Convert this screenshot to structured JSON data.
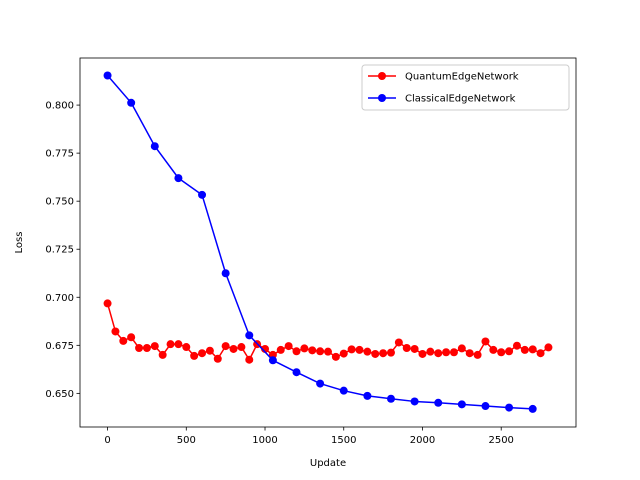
{
  "chart_data": {
    "type": "line",
    "title": "",
    "xlabel": "Update",
    "ylabel": "Loss",
    "xlim": [
      -175,
      2975
    ],
    "ylim": [
      0.6325,
      0.8245
    ],
    "xticks": [
      0,
      500,
      1000,
      1500,
      2000,
      2500
    ],
    "yticks": [
      0.65,
      0.675,
      0.7,
      0.725,
      0.75,
      0.775,
      0.8
    ],
    "ytick_labels": [
      "0.650",
      "0.675",
      "0.700",
      "0.725",
      "0.750",
      "0.775",
      "0.800"
    ],
    "grid": false,
    "legend_position": "upper right",
    "series": [
      {
        "name": "QuantumEdgeNetwork",
        "color": "#ff0000",
        "marker": "circle",
        "x": [
          0,
          50,
          100,
          150,
          200,
          250,
          300,
          350,
          400,
          450,
          500,
          550,
          600,
          650,
          700,
          750,
          800,
          850,
          900,
          950,
          1000,
          1050,
          1100,
          1150,
          1200,
          1250,
          1300,
          1350,
          1400,
          1450,
          1500,
          1550,
          1600,
          1650,
          1700,
          1750,
          1800,
          1850,
          1900,
          1950,
          2000,
          2050,
          2100,
          2150,
          2200,
          2250,
          2300,
          2350,
          2400,
          2450,
          2500,
          2550,
          2600,
          2650,
          2700,
          2750,
          2800
        ],
        "y": [
          0.6968,
          0.6822,
          0.6773,
          0.6792,
          0.6736,
          0.6736,
          0.6746,
          0.67,
          0.6756,
          0.6756,
          0.6741,
          0.6695,
          0.6709,
          0.6722,
          0.668,
          0.6746,
          0.6731,
          0.6741,
          0.6675,
          0.6756,
          0.6731,
          0.67,
          0.6726,
          0.6746,
          0.6719,
          0.6734,
          0.6724,
          0.6719,
          0.6717,
          0.669,
          0.6707,
          0.6729,
          0.6726,
          0.6717,
          0.6705,
          0.6709,
          0.6712,
          0.6765,
          0.6736,
          0.6731,
          0.6705,
          0.6717,
          0.6709,
          0.6714,
          0.6714,
          0.6734,
          0.6709,
          0.67,
          0.677,
          0.6726,
          0.6714,
          0.6719,
          0.6748,
          0.6726,
          0.6729,
          0.6709,
          0.6739
        ]
      },
      {
        "name": "ClassicalEdgeNetwork",
        "color": "#0000ff",
        "marker": "circle",
        "x": [
          0,
          150,
          300,
          450,
          600,
          750,
          900,
          1050,
          1200,
          1350,
          1500,
          1650,
          1800,
          1950,
          2100,
          2250,
          2400,
          2550,
          2700
        ],
        "y": [
          0.8154,
          0.8012,
          0.7786,
          0.762,
          0.7533,
          0.7125,
          0.6802,
          0.6672,
          0.661,
          0.6551,
          0.6514,
          0.6487,
          0.6472,
          0.6458,
          0.6451,
          0.6443,
          0.6434,
          0.6426,
          0.6419
        ]
      }
    ]
  }
}
